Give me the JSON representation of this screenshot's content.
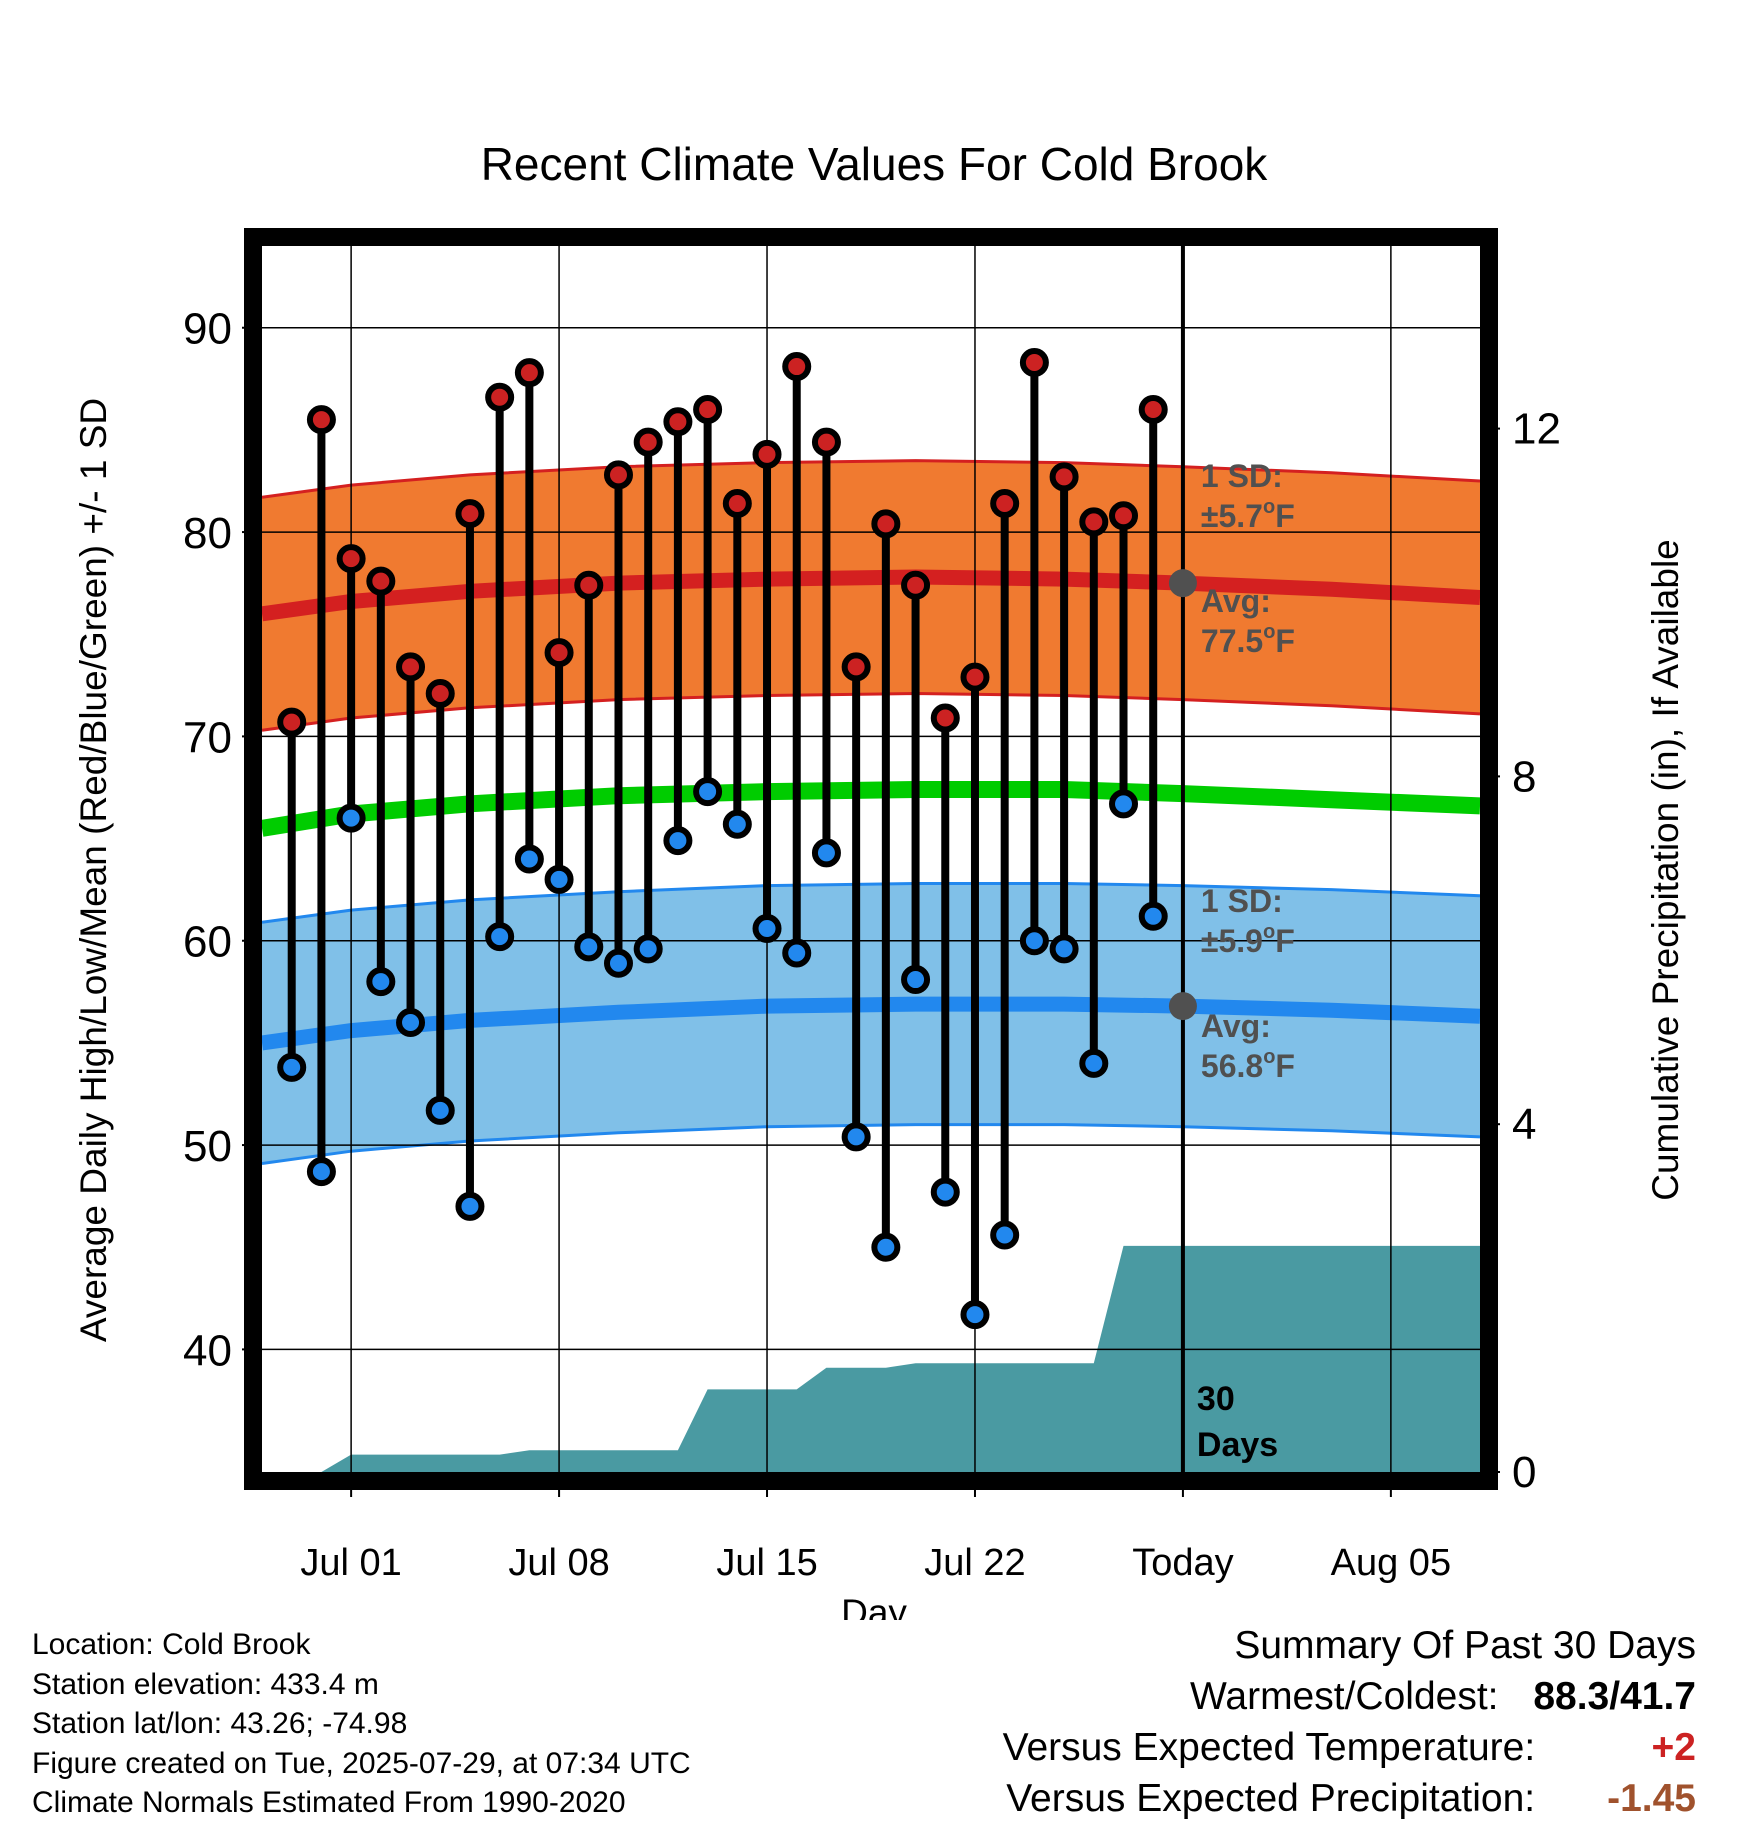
{
  "page": {
    "title": "Recent Climate Values For Cold Brook",
    "y_left_label": "Average Daily High/Low/Mean (Red/Blue/Green) +/- 1 SD",
    "y_right_label": "Cumulative Precipitation (in), If Available",
    "x_label": "Day"
  },
  "colors": {
    "high_band": "#f07a30",
    "high_line": "#d42020",
    "low_band": "#80c0e8",
    "low_line": "#2288ee",
    "mean_line": "#00cc00",
    "precip_fill": "#4a9aa2",
    "high_dot": "#cc2222",
    "low_dot": "#2288ee",
    "annotation": "#505050"
  },
  "annotations": {
    "high_sd_line1": "1 SD:",
    "high_sd_line2": "±5.7°F",
    "high_avg_line1": "Avg:",
    "high_avg_line2": "77.5°F",
    "low_sd_line1": "1 SD:",
    "low_sd_line2": "±5.9°F",
    "low_avg_line1": "Avg:",
    "low_avg_line2": "56.8°F",
    "days_line1": "30",
    "days_line2": "Days"
  },
  "footer": {
    "location": "Location: Cold Brook",
    "elevation": "Station elevation: 433.4 m",
    "latlon": "Station lat/lon: 43.26; -74.98",
    "created": "Figure created on Tue, 2025-07-29, at 07:34 UTC",
    "normals": "Climate Normals Estimated From 1990-2020"
  },
  "summary": {
    "heading": "Summary Of Past 30 Days",
    "warmest_label": "Warmest/Coldest:",
    "warmest_value": "88.3/41.7",
    "temp_label": "Versus Expected Temperature:",
    "temp_value": "+2",
    "temp_color": "#cc2222",
    "precip_label": "Versus Expected Precipitation:",
    "precip_value": "-1.45",
    "precip_color": "#a0522d"
  },
  "chart_data": {
    "type": "line",
    "title": "Recent Climate Values For Cold Brook",
    "xlabel": "Day",
    "ylabel": "Average Daily High/Low/Mean (Red/Blue/Green) +/- 1 SD",
    "y2label": "Cumulative Precipitation (in), If Available",
    "ylim": [
      34,
      94
    ],
    "y2lim": [
      0,
      14.1
    ],
    "yticks": [
      40,
      50,
      60,
      70,
      80,
      90
    ],
    "y2ticks": [
      0,
      4,
      8,
      12
    ],
    "x_range": [
      "2025-06-28",
      "2025-08-08"
    ],
    "xtick_labels": [
      {
        "date": "2025-07-01",
        "label": "Jul 01"
      },
      {
        "date": "2025-07-08",
        "label": "Jul 08"
      },
      {
        "date": "2025-07-15",
        "label": "Jul 15"
      },
      {
        "date": "2025-07-22",
        "label": "Jul 22"
      },
      {
        "date": "2025-07-29",
        "label": "Today"
      },
      {
        "date": "2025-08-05",
        "label": "Aug 05"
      }
    ],
    "today": "2025-07-29",
    "daily": {
      "dates": [
        "2025-06-29",
        "2025-06-30",
        "2025-07-01",
        "2025-07-02",
        "2025-07-03",
        "2025-07-04",
        "2025-07-05",
        "2025-07-06",
        "2025-07-07",
        "2025-07-08",
        "2025-07-09",
        "2025-07-10",
        "2025-07-11",
        "2025-07-12",
        "2025-07-13",
        "2025-07-14",
        "2025-07-15",
        "2025-07-16",
        "2025-07-17",
        "2025-07-18",
        "2025-07-19",
        "2025-07-20",
        "2025-07-21",
        "2025-07-22",
        "2025-07-23",
        "2025-07-24",
        "2025-07-25",
        "2025-07-26",
        "2025-07-27",
        "2025-07-28"
      ],
      "high": [
        70.7,
        85.5,
        78.7,
        77.6,
        73.4,
        72.1,
        80.9,
        86.6,
        87.8,
        74.1,
        77.4,
        82.8,
        84.4,
        85.4,
        86.0,
        81.4,
        83.8,
        88.1,
        84.4,
        73.4,
        80.4,
        77.4,
        70.9,
        72.9,
        81.4,
        88.3,
        82.7,
        80.5,
        80.8,
        86.0
      ],
      "low": [
        53.8,
        48.7,
        66.0,
        58.0,
        56.0,
        51.7,
        47.0,
        60.2,
        64.0,
        63.0,
        59.7,
        58.9,
        59.6,
        64.9,
        67.3,
        65.7,
        60.6,
        59.4,
        64.3,
        50.4,
        45.0,
        58.1,
        47.7,
        41.7,
        45.6,
        60.0,
        59.6,
        54.0,
        66.7,
        61.2
      ]
    },
    "normals": {
      "dates": [
        "2025-06-28",
        "2025-07-01",
        "2025-07-05",
        "2025-07-10",
        "2025-07-15",
        "2025-07-20",
        "2025-07-25",
        "2025-07-29",
        "2025-08-03",
        "2025-08-08"
      ],
      "high_avg": [
        76.0,
        76.6,
        77.1,
        77.5,
        77.7,
        77.8,
        77.7,
        77.5,
        77.2,
        76.8
      ],
      "high_sd": 5.7,
      "mean_avg": [
        65.5,
        66.2,
        66.7,
        67.1,
        67.3,
        67.4,
        67.4,
        67.2,
        66.9,
        66.6
      ],
      "low_avg": [
        55.0,
        55.6,
        56.1,
        56.5,
        56.8,
        56.9,
        56.9,
        56.8,
        56.6,
        56.3
      ],
      "low_sd": 5.9
    },
    "precip": {
      "dates": [
        "2025-06-28",
        "2025-06-30",
        "2025-07-01",
        "2025-07-06",
        "2025-07-07",
        "2025-07-12",
        "2025-07-13",
        "2025-07-16",
        "2025-07-17",
        "2025-07-19",
        "2025-07-20",
        "2025-07-26",
        "2025-07-27",
        "2025-08-08"
      ],
      "values": [
        0.0,
        0.0,
        0.2,
        0.2,
        0.25,
        0.25,
        0.95,
        0.95,
        1.2,
        1.2,
        1.25,
        1.25,
        2.6,
        2.6
      ]
    }
  }
}
